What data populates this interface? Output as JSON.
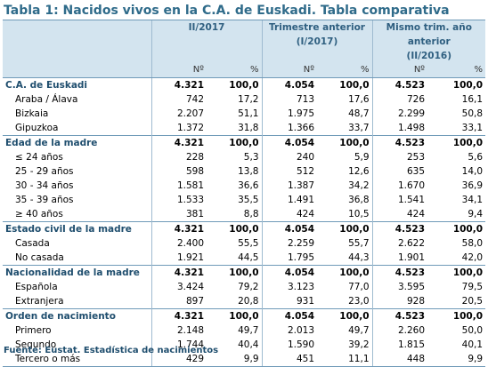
{
  "title": "Tabla 1: Nacidos vivos en la C.A. de Euskadi. Tabla comparativa",
  "headers": {
    "col1": "II/2017",
    "col2_line1": "Trimestre anterior",
    "col2_line2": "(I/2017)",
    "col3_line1": "Mismo trim. año",
    "col3_line2": "anterior",
    "col3_line3": "(II/2016)",
    "n": "Nº",
    "pct": "%"
  },
  "rows": [
    {
      "label": "C.A. de Euskadi",
      "bold": true,
      "v": [
        "4.321",
        "100,0",
        "4.054",
        "100,0",
        "4.523",
        "100,0"
      ]
    },
    {
      "label": "Araba / Álava",
      "bold": false,
      "v": [
        "742",
        "17,2",
        "713",
        "17,6",
        "726",
        "16,1"
      ]
    },
    {
      "label": "Bizkaia",
      "bold": false,
      "v": [
        "2.207",
        "51,1",
        "1.975",
        "48,7",
        "2.299",
        "50,8"
      ]
    },
    {
      "label": "Gipuzkoa",
      "bold": false,
      "v": [
        "1.372",
        "31,8",
        "1.366",
        "33,7",
        "1.498",
        "33,1"
      ]
    },
    {
      "label": "Edad de la madre",
      "bold": true,
      "v": [
        "4.321",
        "100,0",
        "4.054",
        "100,0",
        "4.523",
        "100,0"
      ]
    },
    {
      "label": "≤ 24 años",
      "bold": false,
      "v": [
        "228",
        "5,3",
        "240",
        "5,9",
        "253",
        "5,6"
      ]
    },
    {
      "label": "25 - 29 años",
      "bold": false,
      "v": [
        "598",
        "13,8",
        "512",
        "12,6",
        "635",
        "14,0"
      ]
    },
    {
      "label": "30 - 34 años",
      "bold": false,
      "v": [
        "1.581",
        "36,6",
        "1.387",
        "34,2",
        "1.670",
        "36,9"
      ]
    },
    {
      "label": "35 - 39 años",
      "bold": false,
      "v": [
        "1.533",
        "35,5",
        "1.491",
        "36,8",
        "1.541",
        "34,1"
      ]
    },
    {
      "label": "≥ 40 años",
      "bold": false,
      "v": [
        "381",
        "8,8",
        "424",
        "10,5",
        "424",
        "9,4"
      ]
    },
    {
      "label": "Estado civil de la madre",
      "bold": true,
      "v": [
        "4.321",
        "100,0",
        "4.054",
        "100,0",
        "4.523",
        "100,0"
      ]
    },
    {
      "label": "Casada",
      "bold": false,
      "v": [
        "2.400",
        "55,5",
        "2.259",
        "55,7",
        "2.622",
        "58,0"
      ]
    },
    {
      "label": "No casada",
      "bold": false,
      "v": [
        "1.921",
        "44,5",
        "1.795",
        "44,3",
        "1.901",
        "42,0"
      ]
    },
    {
      "label": "Nacionalidad de la madre",
      "bold": true,
      "v": [
        "4.321",
        "100,0",
        "4.054",
        "100,0",
        "4.523",
        "100,0"
      ]
    },
    {
      "label": "Española",
      "bold": false,
      "v": [
        "3.424",
        "79,2",
        "3.123",
        "77,0",
        "3.595",
        "79,5"
      ]
    },
    {
      "label": "Extranjera",
      "bold": false,
      "v": [
        "897",
        "20,8",
        "931",
        "23,0",
        "928",
        "20,5"
      ]
    },
    {
      "label": "Orden de nacimiento",
      "bold": true,
      "v": [
        "4.321",
        "100,0",
        "4.054",
        "100,0",
        "4.523",
        "100,0"
      ]
    },
    {
      "label": "Primero",
      "bold": false,
      "v": [
        "2.148",
        "49,7",
        "2.013",
        "49,7",
        "2.260",
        "50,0"
      ]
    },
    {
      "label": "Segundo",
      "bold": false,
      "v": [
        "1.744",
        "40,4",
        "1.590",
        "39,2",
        "1.815",
        "40,1"
      ]
    },
    {
      "label": "Tercero o más",
      "bold": false,
      "v": [
        "429",
        "9,9",
        "451",
        "11,1",
        "448",
        "9,9"
      ]
    }
  ],
  "source": "Fuente: Eustat. Estadística de nacimientos",
  "colors": {
    "title": "#2f6b8a",
    "header_bg": "#d3e4ef",
    "label_bold": "#1f4e6e"
  }
}
